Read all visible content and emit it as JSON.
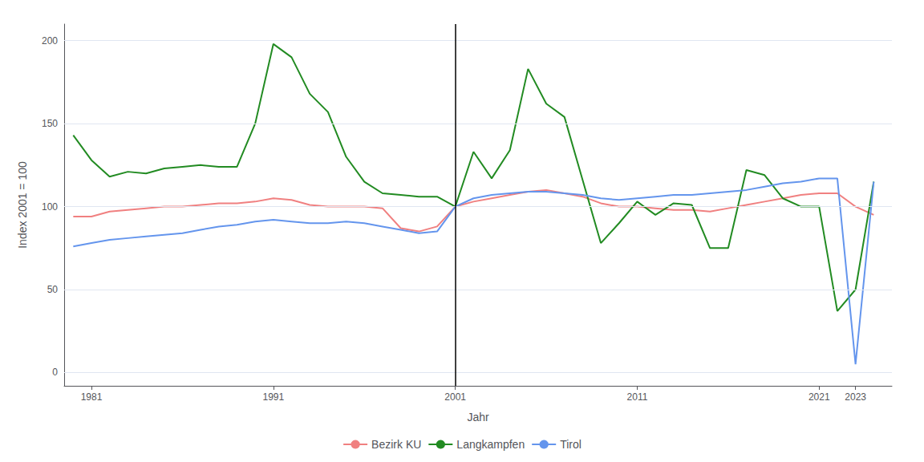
{
  "chart_data": {
    "type": "line",
    "xlabel": "Jahr",
    "ylabel": "Index 2001 = 100",
    "x": [
      1980,
      1981,
      1982,
      1983,
      1984,
      1985,
      1986,
      1987,
      1988,
      1989,
      1990,
      1991,
      1992,
      1993,
      1994,
      1995,
      1996,
      1997,
      1998,
      1999,
      2000,
      2001,
      2002,
      2003,
      2004,
      2005,
      2006,
      2007,
      2008,
      2009,
      2010,
      2011,
      2012,
      2013,
      2014,
      2015,
      2016,
      2017,
      2018,
      2019,
      2020,
      2021,
      2022,
      2023,
      2024
    ],
    "series": [
      {
        "name": "Bezirk KU",
        "color": "#F08080",
        "values": [
          94,
          94,
          97,
          98,
          99,
          100,
          100,
          101,
          102,
          102,
          103,
          105,
          104,
          101,
          100,
          100,
          100,
          99,
          87,
          85,
          88,
          100,
          103,
          105,
          107,
          109,
          110,
          108,
          106,
          102,
          100,
          100,
          99,
          98,
          98,
          97,
          99,
          101,
          103,
          105,
          107,
          108,
          108,
          100,
          95
        ]
      },
      {
        "name": "Langkampfen",
        "color": "#228B22",
        "values": [
          143,
          128,
          118,
          121,
          120,
          123,
          124,
          125,
          124,
          124,
          150,
          198,
          190,
          168,
          157,
          130,
          115,
          108,
          107,
          106,
          106,
          100,
          133,
          117,
          134,
          183,
          162,
          154,
          116,
          78,
          90,
          103,
          95,
          102,
          101,
          75,
          75,
          122,
          119,
          105,
          100,
          100,
          37,
          50,
          115
        ]
      },
      {
        "name": "Tirol",
        "color": "#6495ED",
        "values": [
          76,
          78,
          80,
          81,
          82,
          83,
          84,
          86,
          88,
          89,
          91,
          92,
          91,
          90,
          90,
          91,
          90,
          88,
          86,
          84,
          85,
          100,
          105,
          107,
          108,
          109,
          109,
          108,
          107,
          105,
          104,
          105,
          106,
          107,
          107,
          108,
          109,
          110,
          112,
          114,
          115,
          117,
          117,
          5,
          115
        ]
      }
    ],
    "vline_x": 2001,
    "xlim": [
      1979.5,
      2025
    ],
    "xticks": [
      1981,
      1991,
      2001,
      2011,
      2021,
      2023
    ],
    "ylim": [
      -8,
      210
    ],
    "yticks": [
      0,
      50,
      100,
      150,
      200
    ],
    "grid": true,
    "legend": "bottom"
  }
}
